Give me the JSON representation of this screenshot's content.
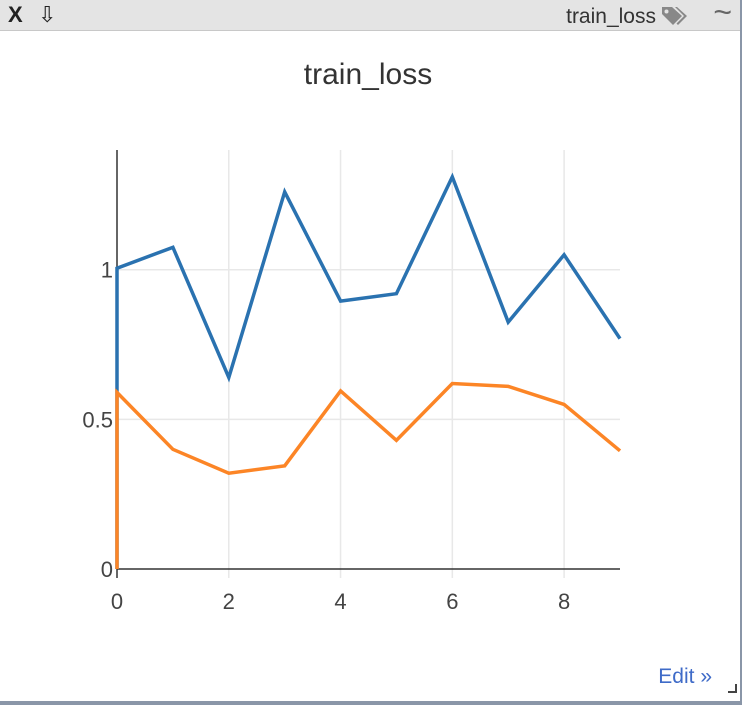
{
  "header": {
    "close_label": "X",
    "download_label": "⇩",
    "title": "train_loss",
    "tag_icon": "tags-icon",
    "smooth_label": "~"
  },
  "footer": {
    "edit_label": "Edit »"
  },
  "colors": {
    "series1": "#2a72b0",
    "series2": "#fc8526"
  },
  "chart_data": {
    "type": "line",
    "title": "train_loss",
    "xlabel": "",
    "ylabel": "",
    "xlim": [
      0,
      9
    ],
    "ylim": [
      -0.03,
      1.4
    ],
    "x_ticks": [
      0,
      2,
      4,
      6,
      8
    ],
    "y_ticks": [
      0,
      0.5,
      1
    ],
    "y_tick_labels": [
      "0",
      "0.5",
      "1"
    ],
    "grid": true,
    "series": [
      {
        "x": [
          0,
          0,
          1,
          2,
          3,
          4,
          5,
          6,
          7,
          8,
          9
        ],
        "values": [
          0.0,
          1.005,
          1.075,
          0.64,
          1.26,
          0.895,
          0.92,
          1.31,
          0.825,
          1.05,
          0.77
        ]
      },
      {
        "x": [
          0,
          0,
          1,
          2,
          3,
          4,
          5,
          6,
          7,
          8,
          9
        ],
        "values": [
          0.0,
          0.59,
          0.4,
          0.32,
          0.345,
          0.595,
          0.43,
          0.62,
          0.61,
          0.55,
          0.395
        ]
      }
    ]
  }
}
